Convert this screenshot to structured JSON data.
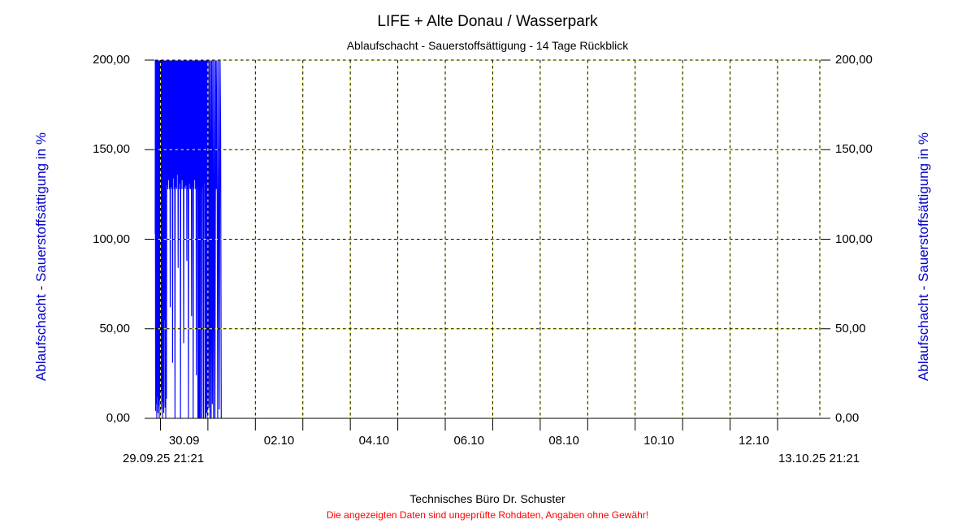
{
  "chart_data": {
    "type": "line",
    "title": "LIFE + Alte Donau / Wasserpark",
    "subtitle": "Ablaufschacht - Sauerstoffsättigung - 14 Tage Rückblick",
    "y_axis": {
      "label": "Ablaufschacht - Sauerstoffsättigung in %",
      "min": 0,
      "max": 200,
      "grid": true,
      "ticks": [
        {
          "value": 0,
          "label": "0,00"
        },
        {
          "value": 50,
          "label": "50,00"
        },
        {
          "value": 100,
          "label": "100,00"
        },
        {
          "value": 150,
          "label": "150,00"
        },
        {
          "value": 200,
          "label": "200,00"
        }
      ]
    },
    "x_axis": {
      "start_label": "29.09.25 21:21",
      "end_label": "13.10.25 21:21",
      "total_hours": 336,
      "gridline_hours": [
        2.65,
        26.65,
        50.65,
        74.65,
        98.65,
        122.65,
        146.65,
        170.65,
        194.65,
        218.65,
        242.65,
        266.65,
        290.65,
        314.65,
        336
      ],
      "tick_hours": [
        2.65,
        26.65,
        50.65,
        74.65,
        98.65,
        122.65,
        146.65,
        170.65,
        194.65,
        218.65,
        242.65,
        266.65,
        290.65,
        314.65
      ],
      "labels": [
        {
          "label": "30.09",
          "hour": 14.65
        },
        {
          "label": "02.10",
          "hour": 62.65
        },
        {
          "label": "04.10",
          "hour": 110.65
        },
        {
          "label": "06.10",
          "hour": 158.65
        },
        {
          "label": "08.10",
          "hour": 206.65
        },
        {
          "label": "10.10",
          "hour": 254.65
        },
        {
          "label": "12.10",
          "hour": 302.65
        }
      ]
    },
    "series": [
      {
        "name": "Ablaufschacht - Sauerstoffsättigung in %",
        "color": "#0000ff",
        "points": [
          [
            0,
            103
          ],
          [
            0.05,
            200
          ],
          [
            0.2,
            4
          ],
          [
            0.35,
            200
          ],
          [
            0.5,
            8
          ],
          [
            0.65,
            200
          ],
          [
            0.8,
            0
          ],
          [
            0.95,
            200
          ],
          [
            1.1,
            12
          ],
          [
            1.25,
            200
          ],
          [
            1.4,
            3
          ],
          [
            1.6,
            200
          ],
          [
            1.75,
            7
          ],
          [
            1.9,
            200
          ],
          [
            2.05,
            0
          ],
          [
            2.2,
            200
          ],
          [
            2.4,
            10
          ],
          [
            2.55,
            200
          ],
          [
            2.7,
            2
          ],
          [
            2.85,
            200
          ],
          [
            3,
            15
          ],
          [
            3.2,
            200
          ],
          [
            3.35,
            5
          ],
          [
            3.5,
            200
          ],
          [
            3.7,
            0
          ],
          [
            3.85,
            200
          ],
          [
            4,
            9
          ],
          [
            4.2,
            200
          ],
          [
            4.35,
            3
          ],
          [
            4.5,
            200
          ],
          [
            4.7,
            55
          ],
          [
            4.85,
            200
          ],
          [
            5,
            6
          ],
          [
            5.2,
            200
          ],
          [
            5.35,
            0
          ],
          [
            5.5,
            200
          ],
          [
            5.7,
            11
          ],
          [
            5.85,
            200
          ],
          [
            6,
            130
          ],
          [
            6.2,
            200
          ],
          [
            6.4,
            128
          ],
          [
            6.6,
            200
          ],
          [
            6.8,
            133
          ],
          [
            7,
            200
          ],
          [
            7.2,
            128
          ],
          [
            7.4,
            200
          ],
          [
            7.6,
            62
          ],
          [
            7.8,
            200
          ],
          [
            8,
            129
          ],
          [
            8.2,
            200
          ],
          [
            8.4,
            128
          ],
          [
            8.6,
            200
          ],
          [
            8.8,
            31
          ],
          [
            9,
            200
          ],
          [
            9.2,
            134
          ],
          [
            9.4,
            200
          ],
          [
            9.6,
            128
          ],
          [
            9.8,
            200
          ],
          [
            10,
            0
          ],
          [
            10.2,
            200
          ],
          [
            10.4,
            129
          ],
          [
            10.6,
            200
          ],
          [
            10.8,
            128
          ],
          [
            11,
            200
          ],
          [
            11.2,
            136
          ],
          [
            11.4,
            200
          ],
          [
            11.6,
            84
          ],
          [
            11.8,
            200
          ],
          [
            12,
            128
          ],
          [
            12.2,
            200
          ],
          [
            12.4,
            131
          ],
          [
            12.6,
            200
          ],
          [
            12.8,
            0
          ],
          [
            13,
            200
          ],
          [
            13.2,
            128
          ],
          [
            13.4,
            200
          ],
          [
            13.6,
            133
          ],
          [
            13.8,
            200
          ],
          [
            14,
            128
          ],
          [
            14.2,
            200
          ],
          [
            14.4,
            42
          ],
          [
            14.6,
            200
          ],
          [
            14.8,
            129
          ],
          [
            15,
            200
          ],
          [
            15.2,
            128
          ],
          [
            15.4,
            200
          ],
          [
            15.6,
            130
          ],
          [
            15.8,
            200
          ],
          [
            16,
            88
          ],
          [
            16.2,
            200
          ],
          [
            16.4,
            128
          ],
          [
            16.6,
            200
          ],
          [
            16.8,
            0
          ],
          [
            17,
            200
          ],
          [
            17.2,
            131
          ],
          [
            17.4,
            200
          ],
          [
            17.6,
            128
          ],
          [
            17.8,
            200
          ],
          [
            18,
            128
          ],
          [
            18.2,
            200
          ],
          [
            18.4,
            57
          ],
          [
            18.6,
            200
          ],
          [
            18.8,
            129
          ],
          [
            19,
            200
          ],
          [
            19.2,
            0
          ],
          [
            19.4,
            200
          ],
          [
            19.6,
            128
          ],
          [
            19.8,
            200
          ],
          [
            20,
            133
          ],
          [
            20.2,
            200
          ],
          [
            20.4,
            128
          ],
          [
            20.6,
            200
          ],
          [
            20.8,
            24
          ],
          [
            21,
            200
          ],
          [
            21.2,
            129
          ],
          [
            21.4,
            200
          ],
          [
            21.6,
            0
          ],
          [
            21.8,
            200
          ],
          [
            21.9,
            0
          ],
          [
            22,
            200
          ],
          [
            22.1,
            0
          ],
          [
            22.2,
            200
          ],
          [
            22.3,
            0
          ],
          [
            22.4,
            200
          ],
          [
            22.5,
            0
          ],
          [
            22.6,
            200
          ],
          [
            22.7,
            0
          ],
          [
            22.8,
            200
          ],
          [
            22.9,
            0
          ],
          [
            23,
            200
          ],
          [
            23.2,
            128
          ],
          [
            23.4,
            200
          ],
          [
            23.6,
            0
          ],
          [
            23.8,
            200
          ],
          [
            24,
            129
          ],
          [
            24.2,
            200
          ],
          [
            24.4,
            0
          ],
          [
            24.6,
            200
          ],
          [
            24.8,
            131
          ],
          [
            25,
            200
          ],
          [
            25.2,
            0
          ],
          [
            25.4,
            200
          ],
          [
            25.6,
            0
          ],
          [
            25.8,
            200
          ],
          [
            26,
            3
          ],
          [
            26.2,
            200
          ],
          [
            26.5,
            0
          ],
          [
            26.8,
            200
          ],
          [
            27.1,
            6
          ],
          [
            27.4,
            200
          ],
          [
            27.7,
            0
          ],
          [
            28,
            200
          ],
          [
            28.3,
            0
          ],
          [
            28.6,
            200
          ],
          [
            28.9,
            8
          ],
          [
            29.2,
            200
          ],
          [
            29.5,
            0
          ],
          [
            29.9,
            200
          ],
          [
            30.2,
            0
          ],
          [
            30.6,
            200
          ],
          [
            30.9,
            128
          ],
          [
            31.2,
            200
          ],
          [
            31.6,
            0
          ],
          [
            32,
            200
          ],
          [
            32.4,
            5
          ],
          [
            32.8,
            200
          ],
          [
            33.1,
            160
          ],
          [
            33.4,
            0
          ]
        ]
      }
    ],
    "colors": {
      "data": "#0000ff",
      "axis_title": "#0000cc",
      "grid": "#000000",
      "grid_alt": "#ffff66",
      "warning": "#ff0000"
    },
    "legend_position": "none"
  },
  "footer": {
    "company": "Technisches Büro Dr. Schuster",
    "disclaimer": "Die angezeigten Daten sind ungeprüfte Rohdaten, Angaben ohne Gewähr!"
  }
}
